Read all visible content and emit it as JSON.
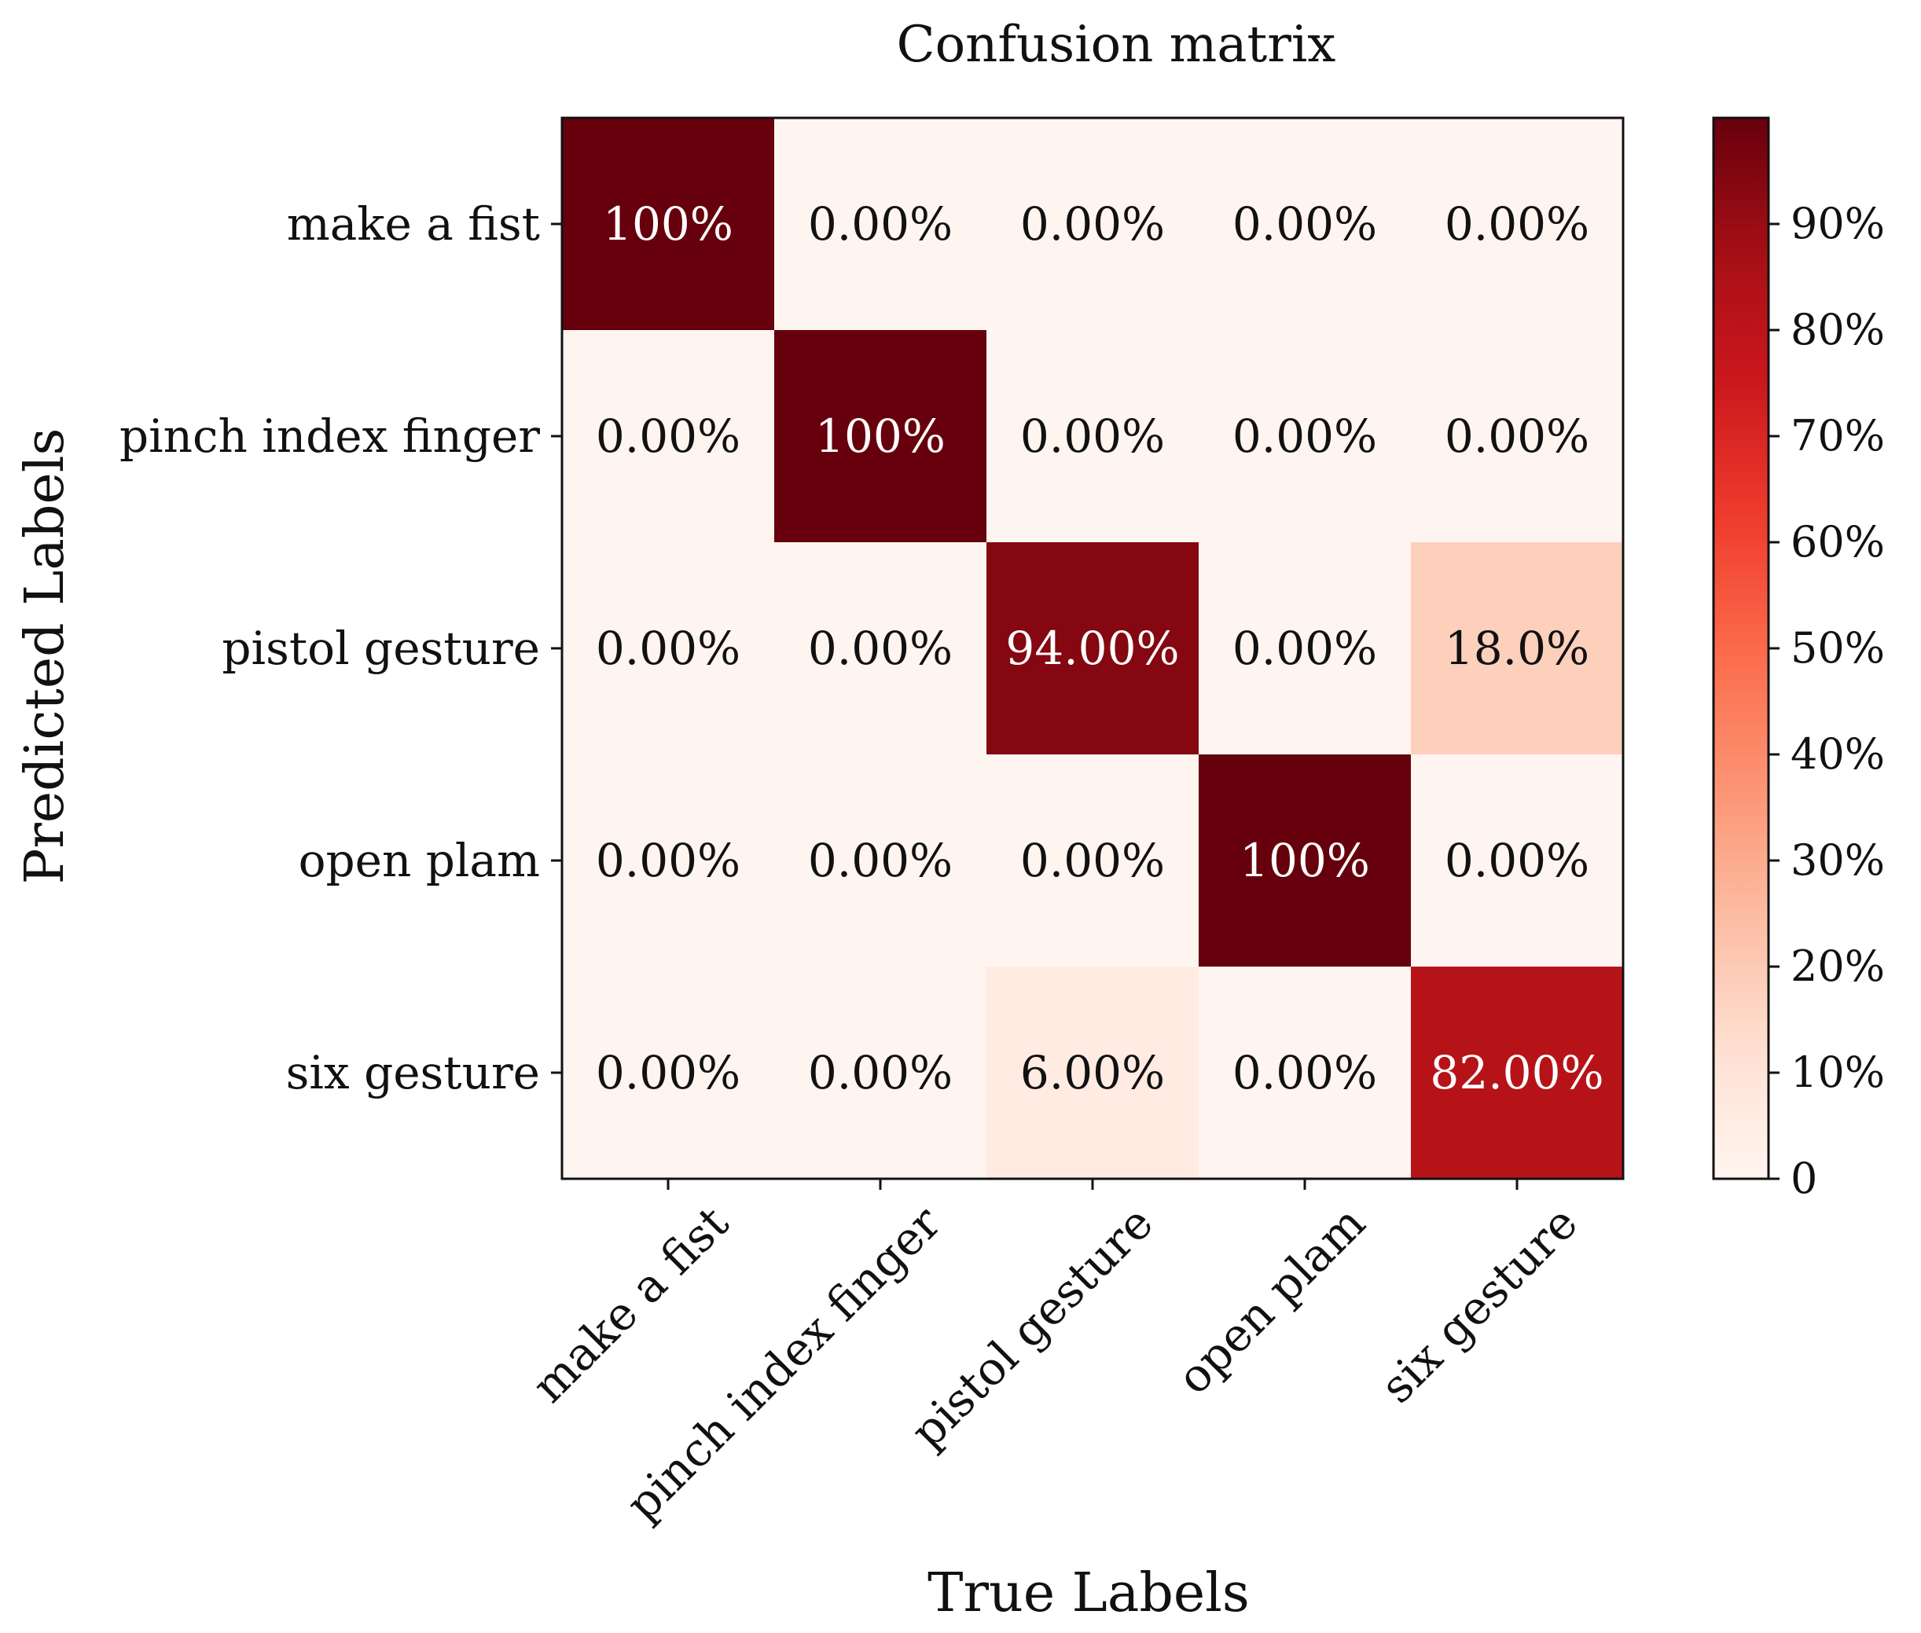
{
  "chart_data": {
    "type": "heatmap",
    "title": "Confusion matrix",
    "xlabel": "True Labels",
    "ylabel": "Predicted Labels",
    "x_categories": [
      "make a fist",
      "pinch index finger",
      "pistol gesture",
      "open plam",
      "six gesture"
    ],
    "y_categories": [
      "make a fist",
      "pinch index finger",
      "pistol gesture",
      "open plam",
      "six gesture"
    ],
    "values": [
      [
        100,
        0,
        0,
        0,
        0
      ],
      [
        0,
        100,
        0,
        0,
        0
      ],
      [
        0,
        0,
        94,
        0,
        18
      ],
      [
        0,
        0,
        0,
        100,
        0
      ],
      [
        0,
        0,
        6,
        0,
        82
      ]
    ],
    "cell_labels": [
      [
        "100%",
        "0.00%",
        "0.00%",
        "0.00%",
        "0.00%"
      ],
      [
        "0.00%",
        "100%",
        "0.00%",
        "0.00%",
        "0.00%"
      ],
      [
        "0.00%",
        "0.00%",
        "94.00%",
        "0.00%",
        "18.0%"
      ],
      [
        "0.00%",
        "0.00%",
        "0.00%",
        "100%",
        "0.00%"
      ],
      [
        "0.00%",
        "0.00%",
        "6.00%",
        "0.00%",
        "82.00%"
      ]
    ],
    "colorbar": {
      "range": [
        0,
        100
      ],
      "ticks": [
        0,
        10,
        20,
        30,
        40,
        50,
        60,
        70,
        80,
        90
      ],
      "tick_labels": [
        "0",
        "10%",
        "20%",
        "30%",
        "40%",
        "50%",
        "60%",
        "70%",
        "80%",
        "90%"
      ],
      "colormap": "Reds"
    }
  },
  "colors": {
    "reds_low": "#fff5f0",
    "reds_high": "#67000d",
    "text_dark": "#111111",
    "text_light": "#ffffff"
  }
}
